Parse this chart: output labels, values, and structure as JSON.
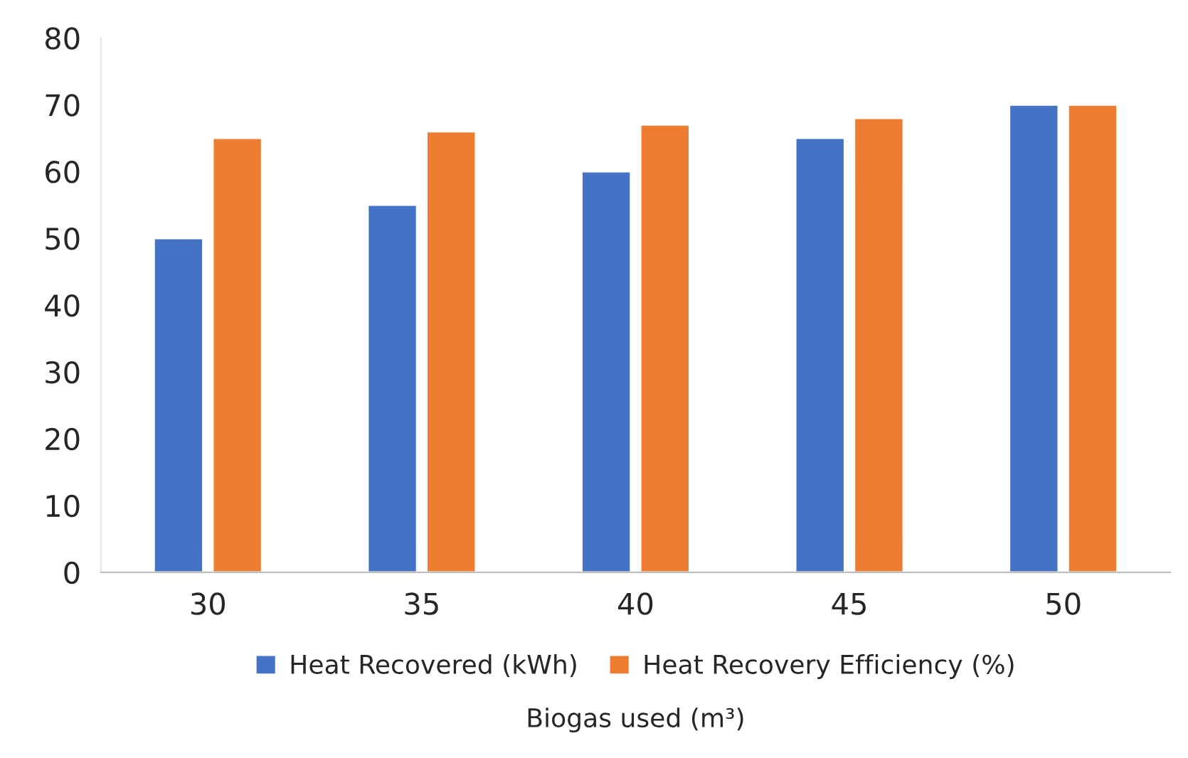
{
  "chart_data": {
    "type": "bar",
    "xlabel": "Biogas used (m³)",
    "categories": [
      "30",
      "35",
      "40",
      "45",
      "50"
    ],
    "series": [
      {
        "name": "Heat Recovered (kWh)",
        "color": "#4472c4",
        "values": [
          50,
          55,
          60,
          65,
          70
        ]
      },
      {
        "name": "Heat Recovery Efficiency (%)",
        "color": "#ed7d31",
        "values": [
          65,
          66,
          67,
          68,
          70
        ]
      }
    ],
    "ylim": [
      0,
      80
    ],
    "yticks": [
      0,
      10,
      20,
      30,
      40,
      50,
      60,
      70,
      80
    ],
    "grid": false,
    "legend": "bottom"
  }
}
